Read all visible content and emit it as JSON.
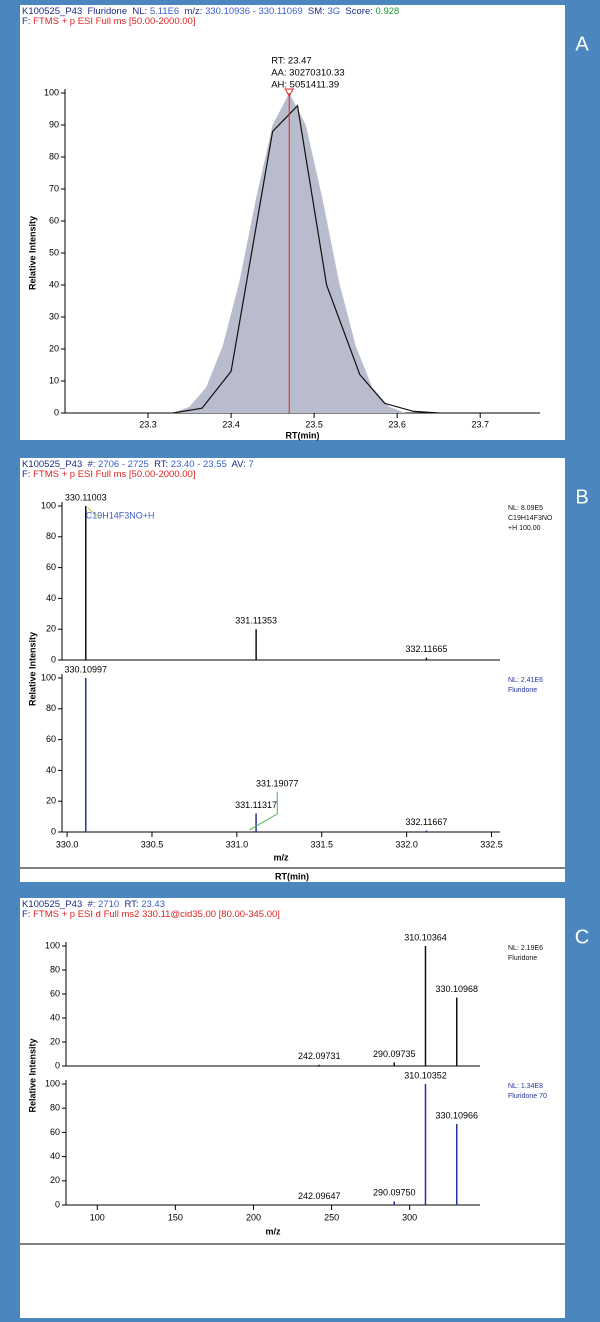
{
  "chart_data": [
    {
      "type": "line",
      "panel_label": "A",
      "header": [
        [
          {
            "text": "K100525_P43  Fluridone  NL: ",
            "color": "#1c2b8a"
          },
          {
            "text": "5.11E6",
            "color": "#3a5fcd"
          },
          {
            "text": "  m/z: ",
            "color": "#1c2b8a"
          },
          {
            "text": "330.10936 - 330.11069",
            "color": "#3a5fcd"
          },
          {
            "text": "  SM: ",
            "color": "#1c2b8a"
          },
          {
            "text": "3G",
            "color": "#3a5fcd"
          },
          {
            "text": "  Score: ",
            "color": "#1c2b8a"
          },
          {
            "text": "0.928",
            "color": "#1f9a3a"
          }
        ],
        [
          {
            "text": "F: ",
            "color": "#1c2b8a"
          },
          {
            "text": "FTMS + p ESI Full ms [50.00-2000.00]",
            "color": "#e02424"
          }
        ]
      ],
      "annotations": [
        "RT: 23.47",
        "AA: 30270310.33",
        "AH: 5051411.39"
      ],
      "marker_x": 23.47,
      "marker_color": "#e02424",
      "ylabel": "Relative Intensity",
      "xlabel": "RT(min)",
      "xlim": [
        23.2,
        23.772
      ],
      "xticks": [
        23.3,
        23.4,
        23.5,
        23.6,
        23.7
      ],
      "ylim": [
        0,
        100
      ],
      "yticks": [
        0,
        10,
        20,
        30,
        40,
        50,
        60,
        70,
        80,
        90,
        100
      ],
      "series": [
        {
          "color": "#b9bccc",
          "fill": true,
          "x": [
            23.33,
            23.35,
            23.37,
            23.39,
            23.41,
            23.43,
            23.45,
            23.47,
            23.49,
            23.51,
            23.53,
            23.55,
            23.57,
            23.59,
            23.61
          ],
          "values": [
            0,
            2,
            8,
            21,
            41,
            67,
            90,
            100,
            90,
            67,
            41,
            21,
            8,
            2,
            0
          ]
        },
        {
          "color": "#111111",
          "fill": false,
          "x": [
            23.33,
            23.365,
            23.4,
            23.45,
            23.48,
            23.515,
            23.555,
            23.585,
            23.62,
            23.65
          ],
          "values": [
            0,
            1.5,
            13,
            88,
            96,
            40,
            12,
            3,
            0.5,
            0
          ]
        }
      ]
    },
    {
      "type": "spectrum",
      "panel_label": "B",
      "header": [
        [
          {
            "text": "K100525_P43  #: ",
            "color": "#1c2b8a"
          },
          {
            "text": "2706 - 2725",
            "color": "#3a5fcd"
          },
          {
            "text": "  RT: ",
            "color": "#1c2b8a"
          },
          {
            "text": "23.40 - 23.55",
            "color": "#3a5fcd"
          },
          {
            "text": "  AV: ",
            "color": "#1c2b8a"
          },
          {
            "text": "7",
            "color": "#3a5fcd"
          }
        ],
        [
          {
            "text": "F: ",
            "color": "#1c2b8a"
          },
          {
            "text": "FTMS + p ESI Full ms [50.00-2000.00]",
            "color": "#e02424"
          }
        ]
      ],
      "ylabel": "Relative Intensity",
      "xlabel": "m/z",
      "footer": "RT(min)",
      "xlim": [
        329.97,
        332.55
      ],
      "xticks": [
        {
          "value": 330,
          "label": "330.0"
        },
        330.5,
        {
          "value": 331,
          "label": "331.0"
        },
        331.5,
        {
          "value": 332,
          "label": "332.0"
        },
        332.5
      ],
      "spectra": [
        {
          "color": "#111111",
          "ylim": [
            0,
            100
          ],
          "yticks": [
            0,
            20,
            40,
            60,
            80,
            100
          ],
          "x": [
            330.11003,
            331.11353,
            332.11665
          ],
          "x_labels": [
            "330.11003",
            "331.11353",
            "332.11665"
          ],
          "values": [
            100,
            20,
            1.5
          ],
          "formula": "C19H14F3NO+H",
          "info": [
            "NL: 8.09E5",
            "C19H14F3NO",
            "+H 100.00"
          ]
        },
        {
          "color": "#23349a",
          "ylim": [
            0,
            100
          ],
          "yticks": [
            0,
            20,
            40,
            60,
            80,
            100
          ],
          "x": [
            330.10997,
            331.11317,
            332.11667
          ],
          "x_labels": [
            "330.10997",
            "331.11317",
            "332.11667"
          ],
          "values": [
            100,
            12,
            1
          ],
          "annotation": {
            "label": "331.19077",
            "x": 331.19077
          },
          "info": [
            "NL: 2.41E6",
            "Fluridone"
          ]
        }
      ]
    },
    {
      "type": "spectrum",
      "panel_label": "C",
      "header": [
        [
          {
            "text": "K100525_P43  #: ",
            "color": "#1c2b8a"
          },
          {
            "text": "2710",
            "color": "#3a5fcd"
          },
          {
            "text": "  RT: ",
            "color": "#1c2b8a"
          },
          {
            "text": "23.43",
            "color": "#3a5fcd"
          }
        ],
        [
          {
            "text": "F: ",
            "color": "#1c2b8a"
          },
          {
            "text": "FTMS + p ESI d Full ms2 330.11@cid35.00 [80.00-345.00]",
            "color": "#e02424"
          }
        ]
      ],
      "ylabel": "Relative Intensity",
      "xlabel": "m/z",
      "xlim": [
        80,
        345
      ],
      "xticks": [
        100,
        150,
        200,
        250,
        300
      ],
      "spectra": [
        {
          "color": "#111111",
          "ylim": [
            0,
            100
          ],
          "yticks": [
            0,
            20,
            40,
            60,
            80,
            100
          ],
          "x": [
            242.09731,
            290.09735,
            310.10364,
            330.10968
          ],
          "x_labels": [
            "242.09731",
            "290.09735",
            "310.10364",
            "330.10968"
          ],
          "values": [
            1,
            3,
            100,
            57
          ],
          "info": [
            "NL: 2.19E6",
            "Fluridone"
          ]
        },
        {
          "color": "#23349a",
          "ylim": [
            0,
            100
          ],
          "yticks": [
            0,
            20,
            40,
            60,
            80,
            100
          ],
          "x": [
            242.09647,
            290.0975,
            310.10352,
            330.10966
          ],
          "x_labels": [
            "242.09647",
            "290.09750",
            "310.10352",
            "330.10966"
          ],
          "values": [
            0.5,
            3,
            100,
            67
          ],
          "info": [
            "NL: 1.34E8",
            "Fluridone 70"
          ]
        }
      ]
    }
  ]
}
